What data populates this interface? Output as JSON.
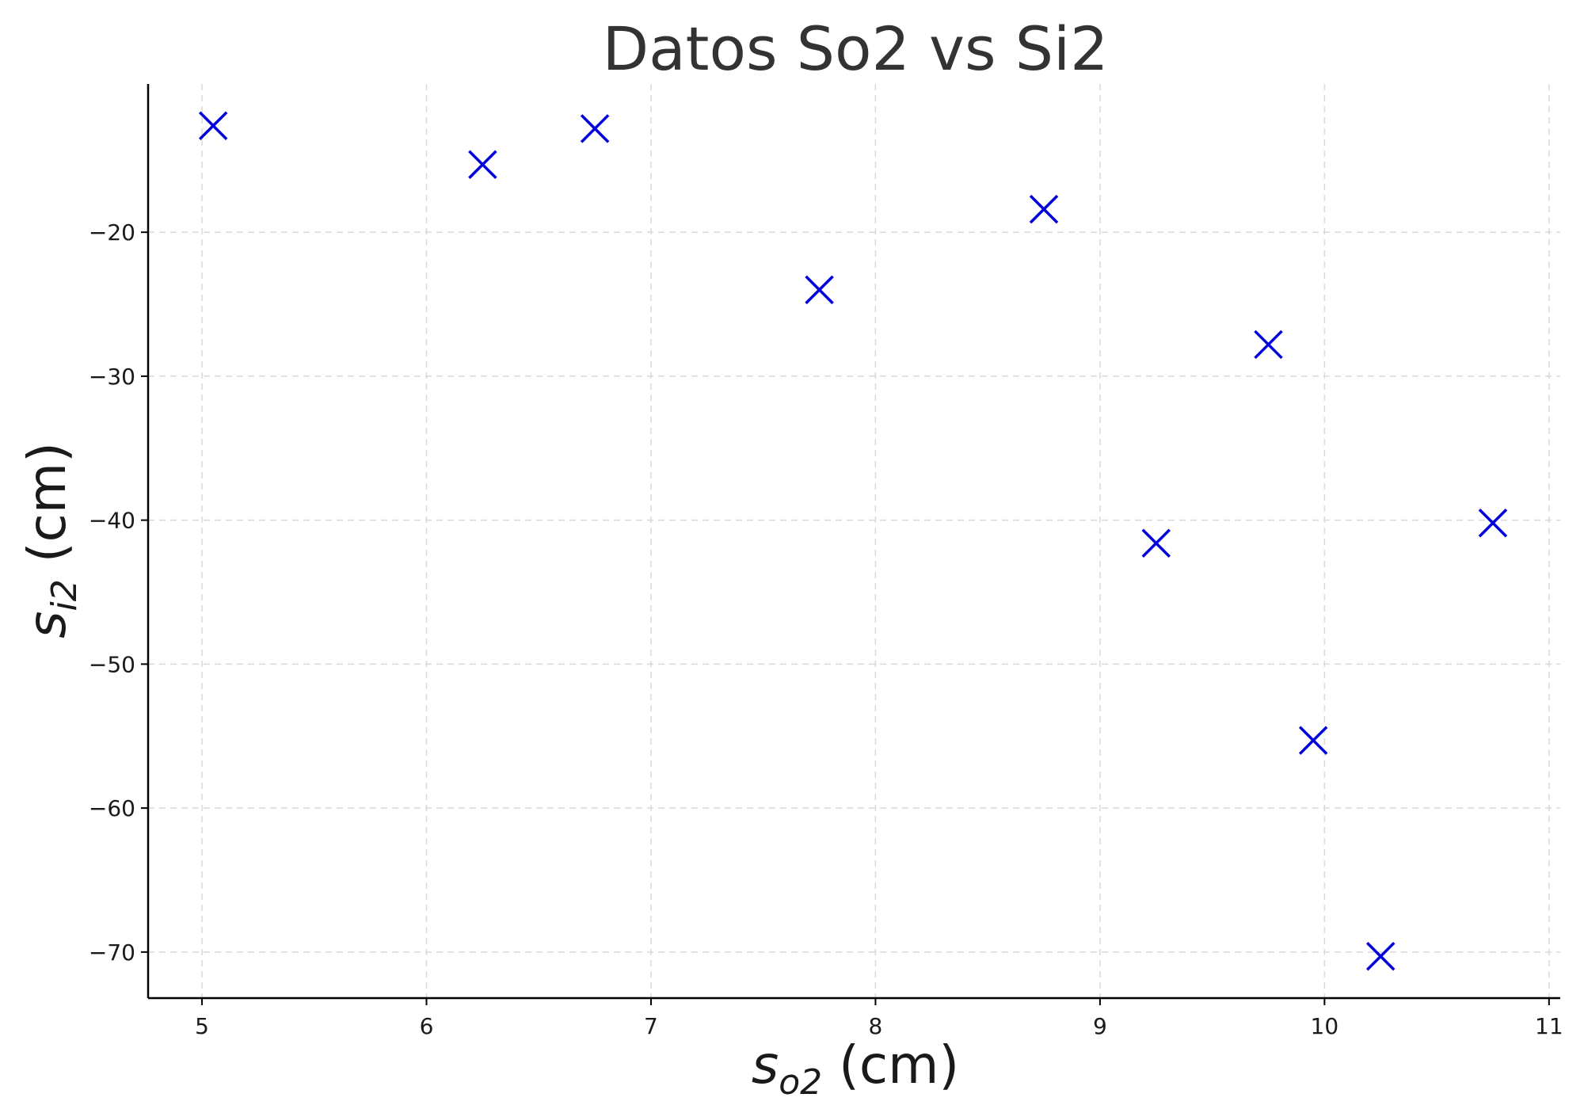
{
  "chart_data": {
    "type": "scatter",
    "title": "Datos So2 vs Si2",
    "xlabel": {
      "base": "s",
      "sub": "o2",
      "rest": " (cm)"
    },
    "ylabel": {
      "base": "s",
      "sub": "i2",
      "rest": " (cm)"
    },
    "xlim": [
      4.76,
      11.05
    ],
    "ylim": [
      -73.2,
      -9.7
    ],
    "x_ticks": [
      5,
      6,
      7,
      8,
      9,
      10,
      11
    ],
    "y_ticks": [
      -20,
      -30,
      -40,
      -50,
      -60,
      -70
    ],
    "grid": true,
    "marker": "x",
    "color": "#0000dd",
    "series": [
      {
        "points": [
          {
            "x": 5.05,
            "y": -12.6
          },
          {
            "x": 6.25,
            "y": -15.3
          },
          {
            "x": 6.75,
            "y": -12.8
          },
          {
            "x": 7.75,
            "y": -24.0
          },
          {
            "x": 8.75,
            "y": -18.4
          },
          {
            "x": 9.25,
            "y": -41.6
          },
          {
            "x": 9.75,
            "y": -27.8
          },
          {
            "x": 9.95,
            "y": -55.3
          },
          {
            "x": 10.25,
            "y": -70.3
          },
          {
            "x": 10.75,
            "y": -40.2
          }
        ]
      }
    ]
  }
}
